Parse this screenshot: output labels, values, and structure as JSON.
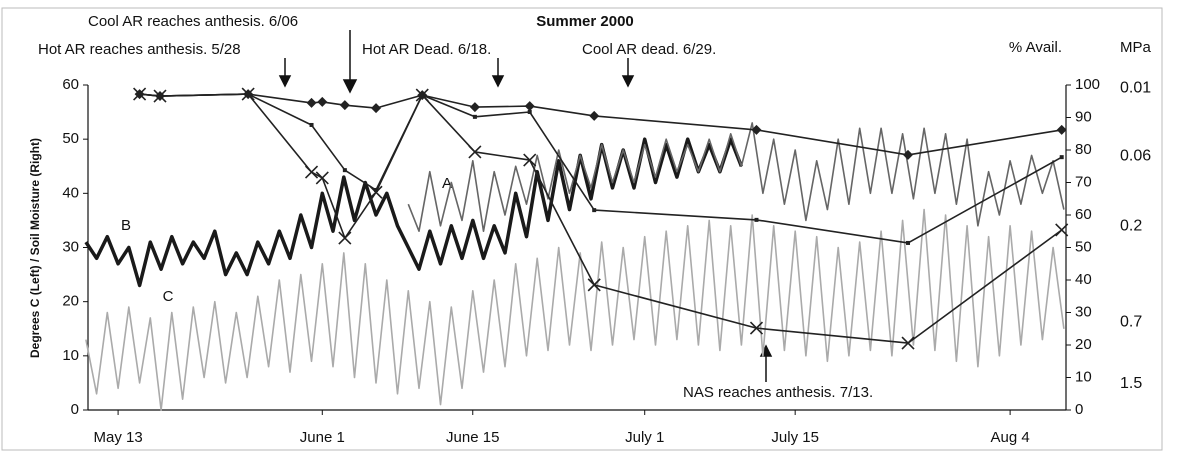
{
  "chart_data": {
    "type": "line",
    "title": "Summer 2000",
    "y_axis_label": "Degrees C (Left) / Soil Moisture (Right)",
    "y2_axis_label": "% Avail.",
    "y3_axis_label": "MPa",
    "annotations": [
      "Cool AR reaches anthesis. 6/06",
      "Hot AR reaches anthesis. 5/28",
      "Hot AR Dead. 6/18.",
      "Cool AR dead. 6/29.",
      "NAS reaches anthesis. 7/13.",
      "A",
      "B",
      "C"
    ],
    "xlim": [
      131.2,
      222.2
    ],
    "xticks": [
      {
        "value": 134,
        "label": "May 13"
      },
      {
        "value": 153,
        "label": "June 1"
      },
      {
        "value": 167,
        "label": "June 15"
      },
      {
        "value": 183,
        "label": "July 1"
      },
      {
        "value": 197,
        "label": "July 15"
      },
      {
        "value": 217,
        "label": "Aug 4"
      }
    ],
    "ylim": [
      0,
      60
    ],
    "yticks": [
      0,
      10,
      20,
      30,
      40,
      50,
      60
    ],
    "y2lim": [
      0,
      100
    ],
    "y2ticks": [
      0,
      10,
      20,
      30,
      40,
      50,
      60,
      70,
      80,
      90,
      100
    ],
    "y3ticks": [
      {
        "value": 99,
        "label": "0.01"
      },
      {
        "value": 78,
        "label": "0.06"
      },
      {
        "value": 56.6,
        "label": "0.2"
      },
      {
        "value": 27,
        "label": "0.7"
      },
      {
        "value": 8,
        "label": "1.5"
      }
    ],
    "series": [
      {
        "color": "#1a1a1a",
        "width": 3.5,
        "marker": "none",
        "x": [
          131,
          132,
          133,
          134,
          135,
          136,
          137,
          138,
          139,
          140,
          141,
          142,
          143,
          144,
          145,
          146,
          147,
          148,
          149,
          150,
          151,
          152,
          153,
          154,
          155,
          156,
          157,
          158,
          159,
          160,
          161,
          162,
          163,
          164,
          165,
          166,
          167,
          168,
          169,
          170,
          171,
          172,
          173,
          174,
          175,
          176,
          177,
          178,
          179,
          180,
          181,
          182,
          183,
          184,
          185,
          186,
          187,
          188,
          189,
          190,
          191,
          192
        ],
        "values": [
          31,
          28,
          32,
          27,
          30,
          23,
          31,
          26,
          32,
          27,
          31,
          28,
          33,
          25,
          29,
          25,
          31,
          27,
          33,
          28,
          36,
          30,
          40,
          33,
          43,
          35,
          42,
          36,
          40,
          34,
          30,
          26,
          33,
          27,
          34,
          28,
          35,
          28,
          34,
          29,
          40,
          32,
          44,
          35,
          46,
          37,
          47,
          39,
          49,
          41,
          48,
          41,
          50,
          42,
          49,
          43,
          50,
          44,
          49,
          44,
          50,
          45
        ]
      },
      {
        "color": "#666666",
        "width": 1.6,
        "marker": "none",
        "x": [
          161,
          162,
          163,
          164,
          165,
          166,
          167,
          168,
          169,
          170,
          171,
          172,
          173,
          174,
          175,
          176,
          177,
          178,
          179,
          180,
          181,
          182,
          183,
          184,
          185,
          186,
          187,
          188,
          189,
          190,
          191,
          192,
          193,
          194,
          195,
          196,
          197,
          198,
          199,
          200,
          201,
          202,
          203,
          204,
          205,
          206,
          207,
          208,
          209,
          210,
          211,
          212,
          213,
          214,
          215,
          216,
          217,
          218,
          219,
          220,
          221,
          222
        ],
        "values": [
          38,
          33,
          44,
          34,
          42,
          35,
          46,
          33,
          44,
          36,
          45,
          38,
          47,
          39,
          48,
          40,
          47,
          41,
          49,
          42,
          48,
          42,
          49,
          43,
          50,
          44,
          49,
          44,
          50,
          44,
          51,
          45,
          53,
          40,
          50,
          38,
          48,
          35,
          46,
          37,
          50,
          38,
          52,
          40,
          52,
          40,
          51,
          39,
          52,
          40,
          51,
          38,
          50,
          34,
          44,
          36,
          46,
          38,
          47,
          40,
          46,
          37
        ]
      },
      {
        "color": "#aaaaaa",
        "width": 1.6,
        "marker": "none",
        "x": [
          131,
          132,
          133,
          134,
          135,
          136,
          137,
          138,
          139,
          140,
          141,
          142,
          143,
          144,
          145,
          146,
          147,
          148,
          149,
          150,
          151,
          152,
          153,
          154,
          155,
          156,
          157,
          158,
          159,
          160,
          161,
          162,
          163,
          164,
          165,
          166,
          167,
          168,
          169,
          170,
          171,
          172,
          173,
          174,
          175,
          176,
          177,
          178,
          179,
          180,
          181,
          182,
          183,
          184,
          185,
          186,
          187,
          188,
          189,
          190,
          191,
          192,
          193,
          194,
          195,
          196,
          197,
          198,
          199,
          200,
          201,
          202,
          203,
          204,
          205,
          206,
          207,
          208,
          209,
          210,
          211,
          212,
          213,
          214,
          215,
          216,
          217,
          218,
          219,
          220,
          221,
          222
        ],
        "values": [
          13,
          3,
          18,
          4,
          19,
          5,
          17,
          0,
          18,
          2,
          19,
          6,
          20,
          5,
          18,
          6,
          21,
          8,
          24,
          7,
          25,
          9,
          27,
          8,
          29,
          6,
          27,
          5,
          24,
          3,
          22,
          4,
          20,
          1,
          19,
          4,
          22,
          7,
          24,
          8,
          27,
          10,
          28,
          11,
          30,
          12,
          29,
          11,
          31,
          12,
          30,
          13,
          32,
          12,
          33,
          13,
          34,
          12,
          35,
          11,
          34,
          12,
          36,
          10,
          34,
          11,
          33,
          10,
          32,
          9,
          30,
          10,
          31,
          11,
          33,
          10,
          35,
          12,
          37,
          11,
          36,
          9,
          34,
          8,
          32,
          10,
          34,
          12,
          33,
          13,
          30,
          15
        ]
      },
      {
        "color": "#222222",
        "width": 1.6,
        "marker": "diamond",
        "axis": "y2",
        "x": [
          136,
          137.9,
          146.1,
          152,
          153,
          155.1,
          158,
          162.3,
          167.2,
          172.3,
          178.3,
          193.4,
          207.5,
          221.8
        ],
        "values": [
          97.2,
          96.6,
          97.2,
          94.5,
          94.8,
          93.8,
          92.9,
          96.9,
          93.2,
          93.5,
          90.5,
          86.2,
          78.5,
          86.2
        ]
      },
      {
        "color": "#222222",
        "width": 1.6,
        "marker": "square",
        "axis": "y2",
        "x": [
          136,
          137.9,
          146.1,
          152,
          155.1,
          158,
          162.3,
          167.2,
          172.3,
          178.3,
          193.4,
          207.5,
          221.8
        ],
        "values": [
          97.2,
          96.6,
          97.2,
          87.7,
          73.8,
          67.7,
          96.9,
          90.2,
          91.7,
          61.5,
          58.5,
          51.4,
          77.8
        ]
      },
      {
        "color": "#222222",
        "width": 1.6,
        "marker": "cross",
        "axis": "y2",
        "x": [
          136,
          137.9,
          146.1,
          152,
          153,
          155.1,
          158,
          162.3,
          167.2,
          172.3,
          178.3,
          193.4,
          207.5,
          221.8
        ],
        "values": [
          97.2,
          96.6,
          97.2,
          73.2,
          71.4,
          52.9,
          67,
          96.9,
          79.4,
          76.9,
          38.5,
          25.2,
          20.6,
          55.4
        ]
      }
    ]
  }
}
